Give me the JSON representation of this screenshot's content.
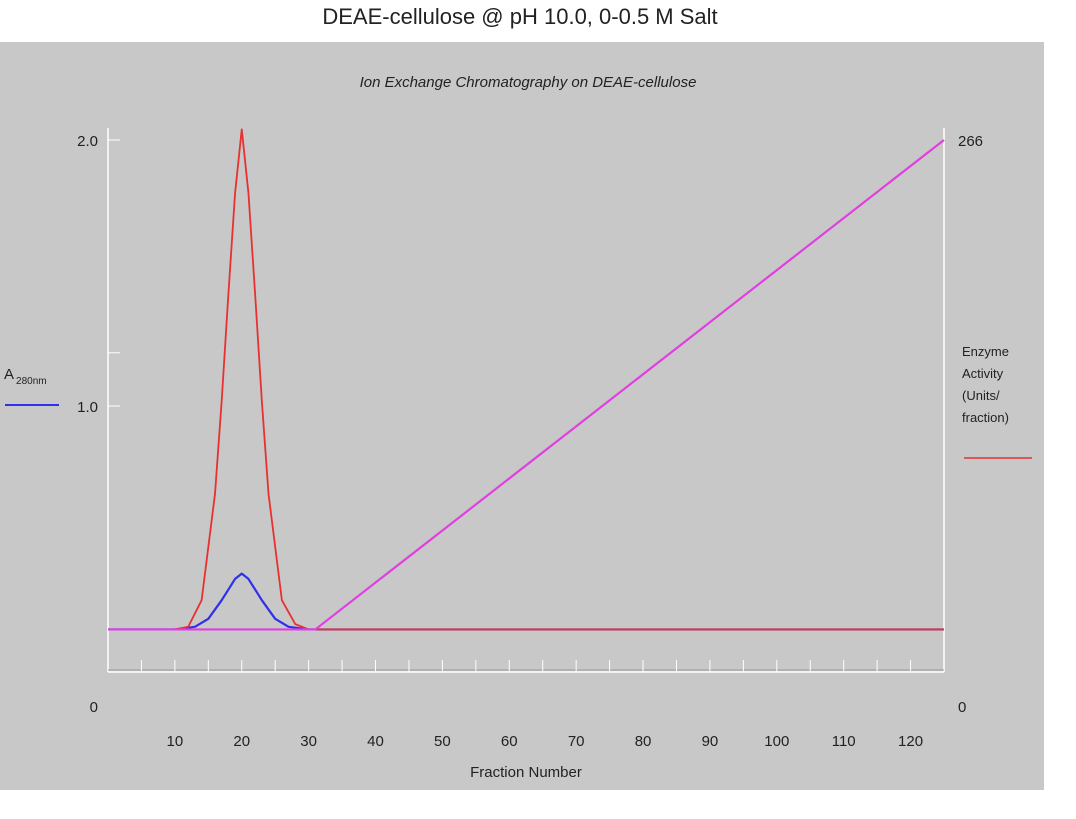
{
  "page_title": "DEAE-cellulose  @ pH 10.0, 0-0.5 M Salt",
  "colors": {
    "panel": "#c8c8c8",
    "absorbance": "#3030e8",
    "enzyme": "#e83030",
    "salt_gradient": "#e040e0",
    "axis": "#ffffff"
  },
  "chart_data": {
    "type": "line",
    "title": "Ion Exchange Chromatography on DEAE-cellulose",
    "xlabel": "Fraction Number",
    "xlim": [
      0,
      125
    ],
    "x_ticks": [
      "10",
      "20",
      "30",
      "40",
      "50",
      "60",
      "70",
      "80",
      "90",
      "100",
      "110",
      "120"
    ],
    "y_left": {
      "label_main": "A",
      "label_sub": "280nm",
      "ticks": [
        "0",
        "1.0",
        "2.0"
      ],
      "ylim": [
        0,
        2.0
      ]
    },
    "y_right": {
      "label_lines": [
        "Enzyme",
        "Activity",
        "(Units/",
        "fraction)"
      ],
      "ticks": [
        "0",
        "266"
      ],
      "ylim": [
        0,
        266
      ]
    },
    "grid": false,
    "series": [
      {
        "key": "absorbance",
        "axis": "left",
        "x": [
          0,
          10,
          13,
          15,
          17,
          19,
          20,
          21,
          23,
          25,
          27,
          30,
          40,
          125
        ],
        "values": [
          0.16,
          0.16,
          0.17,
          0.2,
          0.27,
          0.35,
          0.37,
          0.35,
          0.27,
          0.2,
          0.17,
          0.16,
          0.16,
          0.16
        ]
      },
      {
        "key": "enzyme",
        "axis": "left",
        "x": [
          0,
          10,
          12,
          14,
          16,
          17,
          18,
          19,
          20,
          21,
          22,
          23,
          24,
          26,
          28,
          30,
          40,
          125
        ],
        "values": [
          0.16,
          0.16,
          0.17,
          0.27,
          0.67,
          1.02,
          1.42,
          1.8,
          2.04,
          1.8,
          1.42,
          1.02,
          0.67,
          0.27,
          0.18,
          0.16,
          0.16,
          0.16
        ]
      },
      {
        "key": "salt_gradient",
        "axis": "left",
        "x": [
          0,
          31,
          125
        ],
        "values": [
          0.16,
          0.16,
          2.0
        ]
      }
    ]
  }
}
